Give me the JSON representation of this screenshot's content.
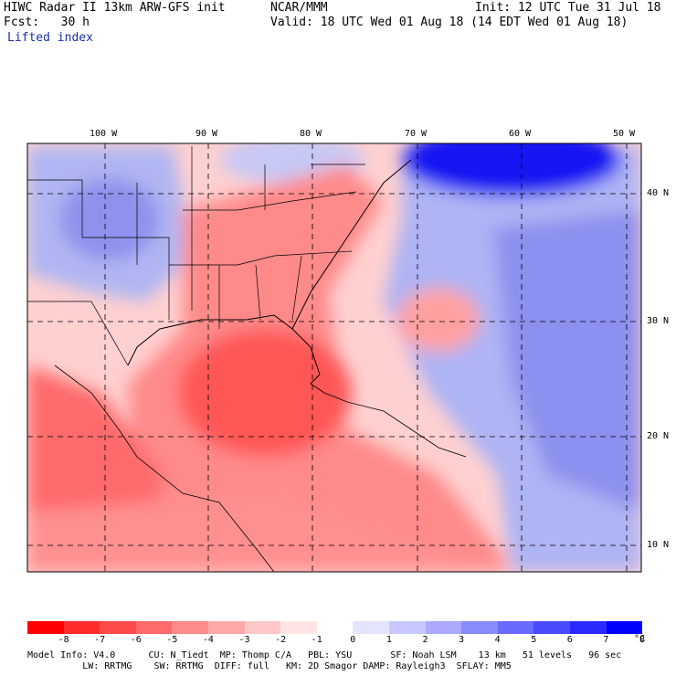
{
  "header": {
    "line1_left": "HIWC Radar II 13km ARW-GFS init",
    "line1_mid": "NCAR/MMM",
    "line1_right": "Init: 12 UTC Tue 31 Jul 18",
    "line2_left": "Fcst:   30 h",
    "line2_right": "Valid: 18 UTC Wed 01 Aug 18 (14 EDT Wed 01 Aug 18)",
    "line3": "Lifted index"
  },
  "map": {
    "lon_labels": [
      "100 W",
      "90 W",
      "80 W",
      "70 W",
      "60 W",
      "50 W"
    ],
    "lat_labels": [
      "40 N",
      "30 N",
      "20 N",
      "10 N"
    ]
  },
  "legend": {
    "colors": [
      "#ff0000",
      "#ff2a2a",
      "#ff4a4a",
      "#ff6a6a",
      "#ff8a8a",
      "#ffaaaa",
      "#ffc8c8",
      "#ffe4e4",
      "#ffffff",
      "#e4e4ff",
      "#c8c8ff",
      "#aaaaff",
      "#8a8aff",
      "#6a6aff",
      "#4a4aff",
      "#2a2aff",
      "#0000ff"
    ],
    "ticks": [
      "-8",
      "-7",
      "-6",
      "-5",
      "-4",
      "-3",
      "-2",
      "-1",
      "0",
      "1",
      "2",
      "3",
      "4",
      "5",
      "6",
      "7",
      "8"
    ],
    "unit": "°C"
  },
  "footer": {
    "line1": "Model Info: V4.0      CU: N_Tiedt  MP: Thomp C/A   PBL: YSU       SF: Noah LSM    13 km   51 levels   96 sec",
    "line2": "          LW: RRTMG    SW: RRTMG  DIFF: full   KM: 2D Smagor DAMP: Rayleigh3  SFLAY: MM5"
  }
}
